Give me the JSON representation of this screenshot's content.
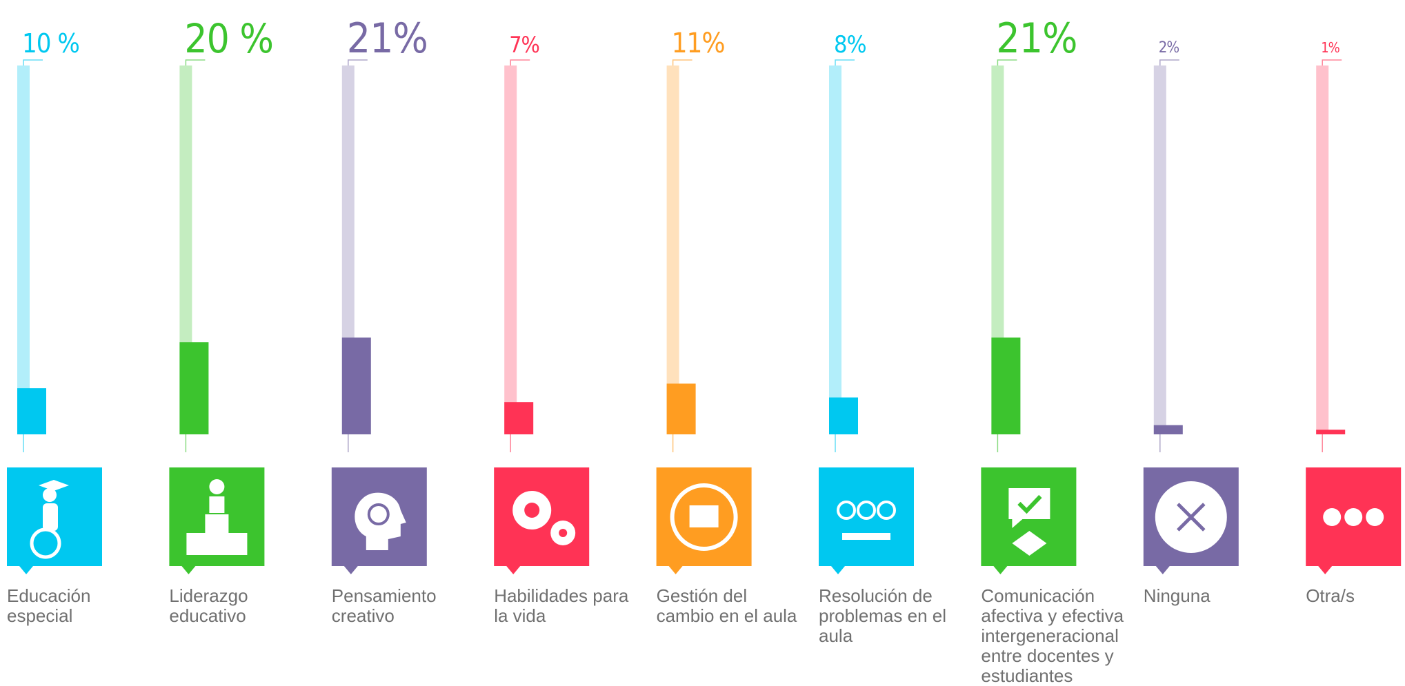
{
  "chart_data": {
    "type": "bar",
    "categories": [
      "Educación especial",
      "Liderazgo educativo",
      "Pensamiento creativo",
      "Habilidades para la vida",
      "Gestión del cambio en el aula",
      "Resolución de problemas en el aula",
      "Comunicación afectiva y efectiva intergeneracional entre docentes y estudiantes",
      "Ninguna",
      "Otra/s"
    ],
    "values": [
      10,
      20,
      21,
      7,
      11,
      8,
      21,
      2,
      1
    ],
    "value_labels": [
      "10 %",
      "20 %",
      "21%",
      "7%",
      "11%",
      "8%",
      "21%",
      "2%",
      "1%"
    ],
    "colors": [
      "#00c8f0",
      "#3cc42e",
      "#786aa5",
      "#ff3355",
      "#ff9d21",
      "#00c8f0",
      "#3cc42e",
      "#786aa5",
      "#ff3355"
    ],
    "ylim": [
      0,
      80
    ]
  }
}
